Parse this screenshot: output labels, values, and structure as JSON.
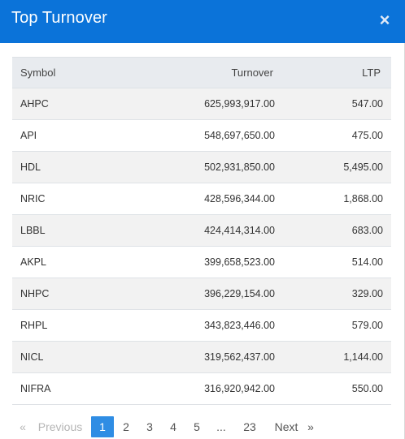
{
  "modal": {
    "title": "Top Turnover",
    "close_glyph": "×"
  },
  "table": {
    "headers": {
      "symbol": "Symbol",
      "turnover": "Turnover",
      "ltp": "LTP"
    },
    "rows": [
      {
        "symbol": "AHPC",
        "turnover": "625,993,917.00",
        "ltp": "547.00"
      },
      {
        "symbol": "API",
        "turnover": "548,697,650.00",
        "ltp": "475.00"
      },
      {
        "symbol": "HDL",
        "turnover": "502,931,850.00",
        "ltp": "5,495.00"
      },
      {
        "symbol": "NRIC",
        "turnover": "428,596,344.00",
        "ltp": "1,868.00"
      },
      {
        "symbol": "LBBL",
        "turnover": "424,414,314.00",
        "ltp": "683.00"
      },
      {
        "symbol": "AKPL",
        "turnover": "399,658,523.00",
        "ltp": "514.00"
      },
      {
        "symbol": "NHPC",
        "turnover": "396,229,154.00",
        "ltp": "329.00"
      },
      {
        "symbol": "RHPL",
        "turnover": "343,823,446.00",
        "ltp": "579.00"
      },
      {
        "symbol": "NICL",
        "turnover": "319,562,437.00",
        "ltp": "1,144.00"
      },
      {
        "symbol": "NIFRA",
        "turnover": "316,920,942.00",
        "ltp": "550.00"
      }
    ]
  },
  "pagination": {
    "prev_arrow": "«",
    "prev_label": "Previous",
    "pages": [
      "1",
      "2",
      "3",
      "4",
      "5",
      "...",
      "23"
    ],
    "active_page": "1",
    "next_label": "Next",
    "next_arrow": "»"
  },
  "colors": {
    "header_bg": "#0b73d9",
    "active_page_bg": "#2f8de4",
    "table_header_bg": "#e8ebef",
    "striped_row_bg": "#f2f2f2"
  }
}
